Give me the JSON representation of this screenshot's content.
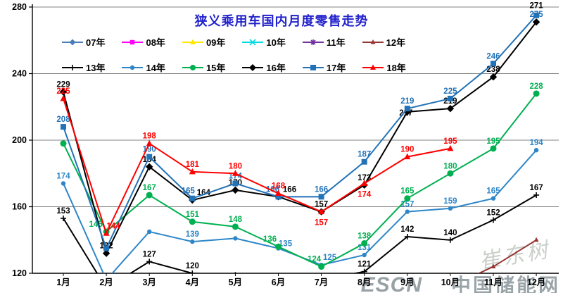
{
  "title": "狭义乘用车国内月度零售走势",
  "watermark": {
    "signature": "崔东树",
    "brand": "ESCN",
    "brand_cn": "中国储能网"
  },
  "chart_data": {
    "type": "line",
    "title": "狭义乘用车国内月度零售走势",
    "categories": [
      "1月",
      "2月",
      "3月",
      "4月",
      "5月",
      "6月",
      "7月",
      "8月",
      "9月",
      "10月",
      "11月",
      "12月"
    ],
    "ylabel": "",
    "xlabel": "",
    "ylim": [
      120,
      280
    ],
    "y_ticks": [
      120,
      160,
      200,
      240,
      280
    ],
    "grid": "horizontal",
    "legend_position": "top-left-inside",
    "legend_rows": [
      [
        "07年",
        "08年",
        "09年",
        "10年",
        "11年",
        "12年"
      ],
      [
        "13年",
        "14年",
        "15年",
        "16年",
        "17年",
        "18年"
      ]
    ],
    "series": [
      {
        "name": "07年",
        "color": "#4a7ebb",
        "marker": "diamond",
        "msize": 3.5,
        "values": [
          null,
          null,
          null,
          null,
          null,
          null,
          null,
          null,
          null,
          null,
          null,
          null
        ],
        "labels": [
          null,
          null,
          null,
          null,
          null,
          null,
          null,
          null,
          null,
          null,
          null,
          null
        ]
      },
      {
        "name": "08年",
        "color": "#ff00ff",
        "marker": "square",
        "msize": 3.2,
        "values": [
          null,
          null,
          null,
          null,
          null,
          null,
          null,
          null,
          null,
          null,
          null,
          null
        ],
        "labels": [
          null,
          null,
          null,
          null,
          null,
          null,
          null,
          null,
          null,
          null,
          null,
          null
        ]
      },
      {
        "name": "09年",
        "color": "#ffe800",
        "marker": "triangle",
        "msize": 4,
        "values": [
          null,
          null,
          null,
          null,
          null,
          null,
          null,
          null,
          null,
          null,
          null,
          null
        ],
        "labels": [
          null,
          null,
          null,
          null,
          null,
          null,
          null,
          null,
          null,
          null,
          null,
          null
        ]
      },
      {
        "name": "10年",
        "color": "#00dbe0",
        "marker": "x",
        "msize": 4,
        "values": [
          null,
          null,
          null,
          null,
          null,
          null,
          null,
          null,
          null,
          null,
          null,
          null
        ],
        "labels": [
          null,
          null,
          null,
          null,
          null,
          null,
          null,
          null,
          null,
          null,
          null,
          null
        ]
      },
      {
        "name": "11年",
        "color": "#7030a0",
        "marker": "asterisk",
        "msize": 4,
        "values": [
          null,
          null,
          null,
          null,
          null,
          null,
          null,
          null,
          null,
          null,
          null,
          null
        ],
        "labels": [
          null,
          null,
          null,
          null,
          null,
          null,
          null,
          null,
          null,
          null,
          null,
          null
        ]
      },
      {
        "name": "12年",
        "color": "#963634",
        "marker": "triangle",
        "msize": 3.5,
        "values": [
          null,
          null,
          null,
          null,
          null,
          null,
          null,
          null,
          null,
          112,
          124,
          140
        ],
        "labels": [
          null,
          null,
          null,
          null,
          null,
          null,
          null,
          null,
          null,
          null,
          null,
          null
        ]
      },
      {
        "name": "13年",
        "color": "#000000",
        "marker": "plus",
        "msize": 4,
        "values": [
          153,
          111,
          127,
          120,
          119,
          117,
          116,
          121,
          142,
          140,
          152,
          167
        ],
        "labels": [
          "153",
          null,
          "127",
          "120",
          null,
          null,
          null,
          "121",
          "142",
          "140",
          "152",
          "167"
        ]
      },
      {
        "name": "14年",
        "color": "#2e86c8",
        "marker": "circle",
        "msize": 3.2,
        "values": [
          174,
          116,
          145,
          139,
          141,
          135,
          125,
          131,
          157,
          159,
          165,
          194
        ],
        "labels": [
          "174",
          null,
          null,
          "139",
          null,
          "135",
          "125",
          "131",
          "157",
          "159",
          "165",
          "194"
        ]
      },
      {
        "name": "15年",
        "color": "#00b050",
        "marker": "circle",
        "msize": 4.5,
        "values": [
          198,
          145,
          167,
          151,
          148,
          136,
          124,
          138,
          165,
          180,
          195,
          228
        ],
        "labels": [
          null,
          "145",
          "167",
          "151",
          "148",
          "136",
          "124",
          "138",
          "165",
          "180",
          "195",
          "228"
        ]
      },
      {
        "name": "16年",
        "color": "#000000",
        "marker": "diamond",
        "msize": 4.2,
        "values": [
          229,
          132,
          184,
          164,
          170,
          166,
          157,
          173,
          217,
          219,
          238,
          271
        ],
        "labels": [
          "229",
          "132",
          "184",
          "164",
          "170",
          "166",
          "157",
          "173",
          "217",
          "219",
          "238",
          "271"
        ]
      },
      {
        "name": "17年",
        "color": "#2272b8",
        "marker": "square",
        "msize": 4,
        "values": [
          208,
          135,
          190,
          165,
          174,
          166,
          166,
          187,
          219,
          225,
          246,
          275
        ],
        "labels": [
          "208",
          null,
          "190",
          "165",
          "174",
          "166",
          "166",
          "187",
          "219",
          "225",
          "246",
          "275"
        ]
      },
      {
        "name": "18年",
        "color": "#ff0000",
        "marker": "triangle",
        "msize": 4.5,
        "values": [
          225,
          144,
          198,
          181,
          180,
          168,
          157,
          174,
          190,
          195,
          null,
          null
        ],
        "labels": [
          "225",
          "144",
          "198",
          "181",
          "180",
          "168",
          "157",
          "174",
          "190",
          "195",
          null,
          null
        ]
      }
    ]
  }
}
